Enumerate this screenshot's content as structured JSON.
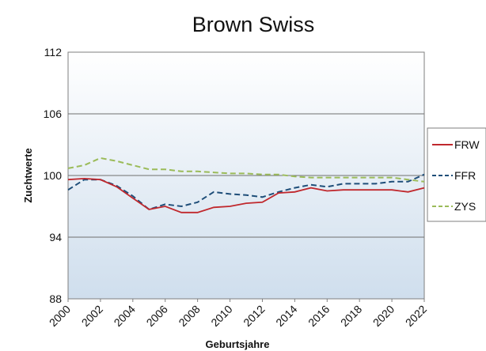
{
  "chart_data": {
    "type": "line",
    "title": "Brown Swiss",
    "xlabel": "Geburtsjahre",
    "ylabel": "Zuchtwerte",
    "x": [
      2000,
      2001,
      2002,
      2003,
      2004,
      2005,
      2006,
      2007,
      2008,
      2009,
      2010,
      2011,
      2012,
      2013,
      2014,
      2015,
      2016,
      2017,
      2018,
      2019,
      2020,
      2021,
      2022
    ],
    "x_ticks": [
      "2000",
      "2002",
      "2004",
      "2006",
      "2008",
      "2010",
      "2012",
      "2014",
      "2016",
      "2018",
      "2020",
      "2022"
    ],
    "y_ticks": [
      "88",
      "94",
      "100",
      "106",
      "112"
    ],
    "ylim": [
      88,
      112
    ],
    "grid": true,
    "legend_position": "right",
    "series": [
      {
        "name": "FRW",
        "color": "#c0282d",
        "dash": "solid",
        "values": [
          99.6,
          99.7,
          99.6,
          98.9,
          97.8,
          96.7,
          97.0,
          96.4,
          96.4,
          96.9,
          97.0,
          97.3,
          97.4,
          98.3,
          98.4,
          98.8,
          98.5,
          98.6,
          98.6,
          98.6,
          98.6,
          98.4,
          98.8
        ]
      },
      {
        "name": "FFR",
        "color": "#1f4e79",
        "dash": "dashed",
        "values": [
          98.6,
          99.6,
          99.6,
          99.0,
          98.0,
          96.7,
          97.2,
          97.0,
          97.4,
          98.4,
          98.2,
          98.1,
          97.9,
          98.4,
          98.8,
          99.1,
          98.9,
          99.2,
          99.2,
          99.2,
          99.4,
          99.4,
          100.1
        ]
      },
      {
        "name": "ZYS",
        "color": "#9bbb59",
        "dash": "dashed",
        "values": [
          100.7,
          101.0,
          101.7,
          101.4,
          101.0,
          100.6,
          100.6,
          100.4,
          100.4,
          100.3,
          100.2,
          100.2,
          100.1,
          100.1,
          99.9,
          99.8,
          99.8,
          99.8,
          99.8,
          99.8,
          99.8,
          99.6,
          99.4
        ]
      }
    ]
  }
}
